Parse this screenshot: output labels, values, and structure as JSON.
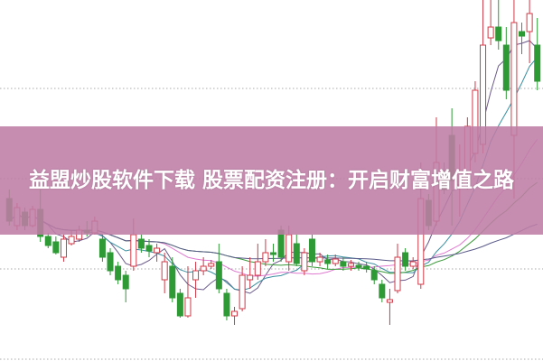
{
  "banner": {
    "title": "益盟炒股软件下载 股票配资注册：开启财富增值之路",
    "color": "#c48bb0"
  },
  "chart_data": {
    "type": "candlestick",
    "title": "",
    "grid": "horizontal-dotted",
    "colors": {
      "up": "#d03a48",
      "down": "#2e9a36",
      "ma5": "#6b5a8a",
      "ma10": "#3a8fa0",
      "ma20": "#e07ad0",
      "ma30": "#3a9a3a",
      "ma60": "#5a5a8a"
    },
    "moving_averages": [
      5,
      10,
      20,
      30,
      60
    ],
    "ylim": [
      0,
      40
    ],
    "ohlc": [
      [
        18.0,
        15.5,
        19.0,
        15.0
      ],
      [
        15.0,
        17.0,
        17.5,
        14.5
      ],
      [
        16.5,
        15.0,
        17.0,
        14.5
      ],
      [
        15.0,
        16.8,
        17.2,
        14.8
      ],
      [
        16.8,
        13.8,
        19.0,
        13.2
      ],
      [
        13.8,
        12.8,
        14.2,
        12.5
      ],
      [
        13.2,
        12.0,
        13.8,
        11.8
      ],
      [
        11.5,
        13.5,
        14.0,
        11.0
      ],
      [
        13.0,
        13.8,
        14.5,
        12.8
      ],
      [
        13.5,
        14.5,
        15.0,
        13.2
      ],
      [
        14.5,
        14.2,
        15.5,
        13.8
      ],
      [
        14.2,
        15.5,
        16.0,
        14.0
      ],
      [
        13.5,
        11.5,
        14.0,
        11.0
      ],
      [
        12.0,
        10.0,
        12.5,
        9.5
      ],
      [
        10.5,
        9.0,
        11.0,
        8.5
      ],
      [
        9.5,
        8.0,
        10.0,
        6.5
      ],
      [
        10.5,
        14.0,
        15.8,
        10.0
      ],
      [
        13.5,
        12.5,
        14.0,
        12.0
      ],
      [
        12.8,
        12.2,
        13.5,
        11.5
      ],
      [
        12.0,
        12.5,
        13.0,
        11.0
      ],
      [
        9.0,
        11.0,
        12.0,
        7.5
      ],
      [
        10.5,
        7.0,
        11.5,
        6.5
      ],
      [
        7.5,
        5.0,
        8.0,
        4.8
      ],
      [
        5.0,
        7.0,
        10.5,
        4.8
      ],
      [
        9.0,
        10.0,
        11.0,
        7.0
      ],
      [
        10.0,
        10.5,
        11.5,
        9.5
      ],
      [
        10.5,
        10.8,
        11.2,
        10.2
      ],
      [
        11.0,
        8.0,
        13.0,
        7.5
      ],
      [
        7.5,
        5.0,
        8.0,
        4.5
      ],
      [
        5.0,
        5.5,
        6.0,
        4.0
      ],
      [
        5.8,
        9.5,
        10.5,
        5.5
      ],
      [
        9.0,
        9.5,
        11.5,
        8.0
      ],
      [
        9.5,
        11.0,
        13.0,
        9.0
      ],
      [
        11.0,
        12.0,
        13.5,
        10.5
      ],
      [
        12.0,
        11.8,
        13.0,
        11.0
      ],
      [
        14.5,
        11.5,
        15.0,
        11.0
      ],
      [
        11.0,
        14.0,
        15.0,
        10.0
      ],
      [
        13.0,
        10.8,
        14.0,
        10.5
      ],
      [
        10.0,
        12.0,
        12.5,
        9.5
      ],
      [
        13.5,
        11.0,
        14.0,
        10.5
      ],
      [
        11.0,
        11.5,
        12.0,
        10.5
      ],
      [
        11.2,
        10.8,
        11.8,
        10.2
      ],
      [
        10.8,
        11.3,
        11.8,
        10.5
      ],
      [
        11.0,
        10.5,
        11.5,
        10.0
      ],
      [
        10.5,
        10.8,
        11.2,
        10.0
      ],
      [
        10.6,
        10.4,
        11.0,
        10.0
      ],
      [
        10.5,
        10.2,
        11.0,
        9.8
      ],
      [
        10.0,
        9.0,
        10.5,
        8.5
      ],
      [
        8.5,
        7.0,
        9.0,
        6.5
      ],
      [
        6.5,
        6.8,
        8.0,
        4.0
      ],
      [
        7.8,
        11.5,
        13.0,
        7.5
      ],
      [
        12.0,
        10.5,
        12.5,
        10.0
      ],
      [
        10.5,
        11.0,
        11.5,
        10.2
      ],
      [
        8.5,
        18.0,
        22.0,
        8.0
      ],
      [
        17.8,
        15.0,
        18.5,
        14.5
      ],
      [
        15.5,
        22.0,
        27.0,
        15.0
      ],
      [
        21.0,
        19.0,
        22.0,
        18.5
      ],
      [
        25.0,
        20.0,
        28.0,
        15.0
      ],
      [
        19.5,
        21.0,
        24.0,
        16.0
      ],
      [
        21.0,
        26.0,
        27.0,
        19.0
      ],
      [
        23.0,
        30.0,
        31.0,
        22.0
      ],
      [
        24.0,
        35.0,
        40.0,
        23.0
      ],
      [
        35.8,
        37.0,
        40.0,
        35.0
      ],
      [
        37.0,
        35.5,
        40.0,
        34.5
      ],
      [
        35.0,
        30.0,
        37.0,
        29.0
      ],
      [
        25.0,
        37.5,
        40.0,
        18.0
      ],
      [
        36.5,
        36.0,
        37.5,
        34.0
      ],
      [
        36.5,
        38.5,
        40.0,
        33.0
      ],
      [
        35.0,
        31.0,
        38.0,
        30.0
      ]
    ]
  }
}
